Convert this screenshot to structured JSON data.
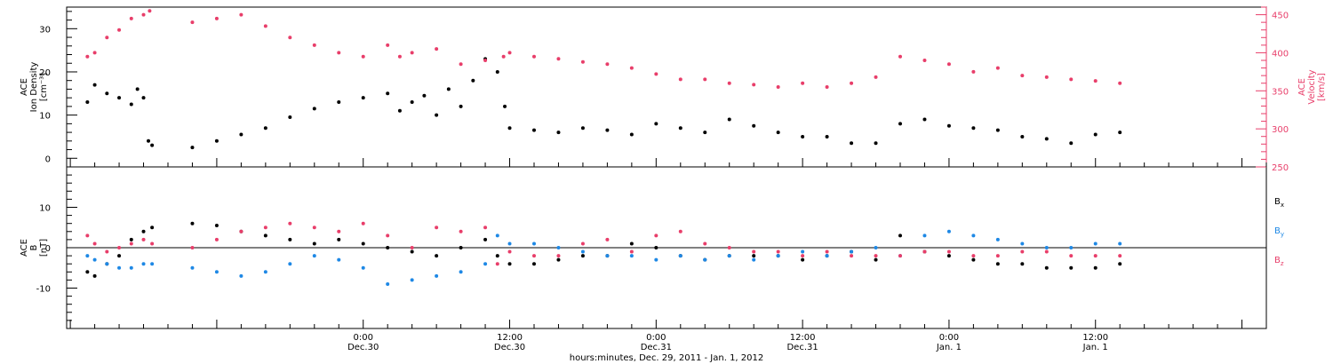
{
  "chart_data": [
    {
      "type": "scatter",
      "panel": "top",
      "ylabel_left_lines": [
        "ACE",
        "Ion Density",
        "[cm⁻³]"
      ],
      "ylabel_right_lines": [
        "ACE",
        "Velocity",
        "[km/s]"
      ],
      "left_axis_color": "#000000",
      "right_axis_color": "#e83e6a",
      "ylim_left": [
        -2,
        35
      ],
      "ylim_right": [
        250,
        460
      ],
      "yticks_left": [
        "0",
        "10",
        "20",
        "30"
      ],
      "yticks_right": [
        "250",
        "300",
        "350",
        "400",
        "450"
      ],
      "series": [
        {
          "color": "#000000",
          "axis": "left",
          "points": [
            [
              -22.6,
              13
            ],
            [
              -22,
              17
            ],
            [
              -21,
              15
            ],
            [
              -20,
              14
            ],
            [
              -19,
              12.5
            ],
            [
              -18.5,
              16
            ],
            [
              -18,
              14
            ],
            [
              -17.6,
              4
            ],
            [
              -17.3,
              3
            ],
            [
              -14,
              2.5
            ],
            [
              -12,
              4
            ],
            [
              -10,
              5.5
            ],
            [
              -8,
              7
            ],
            [
              -6,
              9.5
            ],
            [
              -4,
              11.5
            ],
            [
              -2,
              13
            ],
            [
              0,
              14
            ],
            [
              2,
              15
            ],
            [
              3,
              11
            ],
            [
              4,
              13
            ],
            [
              5,
              14.5
            ],
            [
              6,
              10
            ],
            [
              7,
              16
            ],
            [
              8,
              12
            ],
            [
              9,
              18
            ],
            [
              10,
              23
            ],
            [
              11,
              20
            ],
            [
              11.6,
              12
            ],
            [
              12,
              7
            ],
            [
              14,
              6.5
            ],
            [
              16,
              6
            ],
            [
              18,
              7
            ],
            [
              20,
              6.5
            ],
            [
              22,
              5.5
            ],
            [
              24,
              8
            ],
            [
              26,
              7
            ],
            [
              28,
              6
            ],
            [
              30,
              9
            ],
            [
              32,
              7.5
            ],
            [
              34,
              6
            ],
            [
              36,
              5
            ],
            [
              38,
              5
            ],
            [
              40,
              3.5
            ],
            [
              42,
              3.5
            ],
            [
              44,
              8
            ],
            [
              46,
              9
            ],
            [
              48,
              7.5
            ],
            [
              50,
              7
            ],
            [
              52,
              6.5
            ],
            [
              54,
              5
            ],
            [
              56,
              4.5
            ],
            [
              58,
              3.5
            ],
            [
              60,
              5.5
            ],
            [
              62,
              6
            ]
          ]
        },
        {
          "color": "#e83e6a",
          "axis": "right",
          "points": [
            [
              -22.6,
              395
            ],
            [
              -22,
              400
            ],
            [
              -21,
              420
            ],
            [
              -20,
              430
            ],
            [
              -19,
              445
            ],
            [
              -18,
              450
            ],
            [
              -17.5,
              455
            ],
            [
              -14,
              440
            ],
            [
              -12,
              445
            ],
            [
              -10,
              450
            ],
            [
              -8,
              435
            ],
            [
              -6,
              420
            ],
            [
              -4,
              410
            ],
            [
              -2,
              400
            ],
            [
              0,
              395
            ],
            [
              2,
              410
            ],
            [
              3,
              395
            ],
            [
              4,
              400
            ],
            [
              6,
              405
            ],
            [
              8,
              385
            ],
            [
              10,
              390
            ],
            [
              11.5,
              395
            ],
            [
              12,
              400
            ],
            [
              14,
              395
            ],
            [
              16,
              392
            ],
            [
              18,
              388
            ],
            [
              20,
              385
            ],
            [
              22,
              380
            ],
            [
              24,
              372
            ],
            [
              26,
              365
            ],
            [
              28,
              365
            ],
            [
              30,
              360
            ],
            [
              32,
              358
            ],
            [
              34,
              355
            ],
            [
              36,
              360
            ],
            [
              38,
              355
            ],
            [
              40,
              360
            ],
            [
              42,
              368
            ],
            [
              44,
              395
            ],
            [
              46,
              390
            ],
            [
              48,
              385
            ],
            [
              50,
              375
            ],
            [
              52,
              380
            ],
            [
              54,
              370
            ],
            [
              56,
              368
            ],
            [
              58,
              365
            ],
            [
              60,
              363
            ],
            [
              62,
              360
            ]
          ]
        }
      ]
    },
    {
      "type": "scatter",
      "panel": "bottom",
      "ylabel_lines": [
        "ACE",
        "B",
        "[nT]"
      ],
      "ylim": [
        -20,
        20
      ],
      "yticks": [
        "-10",
        "0",
        "10"
      ],
      "zero_line": true,
      "series": [
        {
          "name": "Bx",
          "color": "#000000",
          "points": [
            [
              -22.6,
              -6
            ],
            [
              -22,
              -7
            ],
            [
              -21,
              -4
            ],
            [
              -20,
              -2
            ],
            [
              -19,
              2
            ],
            [
              -18,
              4
            ],
            [
              -17.3,
              5
            ],
            [
              -14,
              6
            ],
            [
              -12,
              5.5
            ],
            [
              -10,
              4
            ],
            [
              -8,
              3
            ],
            [
              -6,
              2
            ],
            [
              -4,
              1
            ],
            [
              -2,
              2
            ],
            [
              0,
              1
            ],
            [
              2,
              0
            ],
            [
              4,
              -1
            ],
            [
              6,
              -2
            ],
            [
              8,
              0
            ],
            [
              10,
              2
            ],
            [
              11,
              -2
            ],
            [
              12,
              -4
            ],
            [
              14,
              -4
            ],
            [
              16,
              -3
            ],
            [
              18,
              -2
            ],
            [
              20,
              -2
            ],
            [
              22,
              1
            ],
            [
              24,
              0
            ],
            [
              26,
              -2
            ],
            [
              28,
              -3
            ],
            [
              30,
              -2
            ],
            [
              32,
              -2
            ],
            [
              34,
              -2
            ],
            [
              36,
              -3
            ],
            [
              38,
              -2
            ],
            [
              40,
              -1
            ],
            [
              42,
              -3
            ],
            [
              44,
              3
            ],
            [
              46,
              -1
            ],
            [
              48,
              -2
            ],
            [
              50,
              -3
            ],
            [
              52,
              -4
            ],
            [
              54,
              -4
            ],
            [
              56,
              -5
            ],
            [
              58,
              -5
            ],
            [
              60,
              -5
            ],
            [
              62,
              -4
            ]
          ]
        },
        {
          "name": "By",
          "color": "#1e88e5",
          "points": [
            [
              -22.6,
              -2
            ],
            [
              -22,
              -3
            ],
            [
              -21,
              -4
            ],
            [
              -20,
              -5
            ],
            [
              -19,
              -5
            ],
            [
              -18,
              -4
            ],
            [
              -17.3,
              -4
            ],
            [
              -14,
              -5
            ],
            [
              -12,
              -6
            ],
            [
              -10,
              -7
            ],
            [
              -8,
              -6
            ],
            [
              -6,
              -4
            ],
            [
              -4,
              -2
            ],
            [
              -2,
              -3
            ],
            [
              0,
              -5
            ],
            [
              2,
              -9
            ],
            [
              4,
              -8
            ],
            [
              6,
              -7
            ],
            [
              8,
              -6
            ],
            [
              10,
              -4
            ],
            [
              11,
              3
            ],
            [
              12,
              1
            ],
            [
              14,
              1
            ],
            [
              16,
              0
            ],
            [
              18,
              -1
            ],
            [
              20,
              -2
            ],
            [
              22,
              -2
            ],
            [
              24,
              -3
            ],
            [
              26,
              -2
            ],
            [
              28,
              -3
            ],
            [
              30,
              -2
            ],
            [
              32,
              -3
            ],
            [
              34,
              -2
            ],
            [
              36,
              -1
            ],
            [
              38,
              -2
            ],
            [
              40,
              -1
            ],
            [
              42,
              0
            ],
            [
              44,
              -2
            ],
            [
              46,
              3
            ],
            [
              48,
              4
            ],
            [
              50,
              3
            ],
            [
              52,
              2
            ],
            [
              54,
              1
            ],
            [
              56,
              0
            ],
            [
              58,
              0
            ],
            [
              60,
              1
            ],
            [
              62,
              1
            ]
          ]
        },
        {
          "name": "Bz",
          "color": "#e83e6a",
          "points": [
            [
              -22.6,
              3
            ],
            [
              -22,
              1
            ],
            [
              -21,
              -1
            ],
            [
              -20,
              0
            ],
            [
              -19,
              1
            ],
            [
              -18,
              2
            ],
            [
              -17.3,
              1
            ],
            [
              -14,
              0
            ],
            [
              -12,
              2
            ],
            [
              -10,
              4
            ],
            [
              -8,
              5
            ],
            [
              -6,
              6
            ],
            [
              -4,
              5
            ],
            [
              -2,
              4
            ],
            [
              0,
              6
            ],
            [
              2,
              3
            ],
            [
              4,
              0
            ],
            [
              6,
              5
            ],
            [
              8,
              4
            ],
            [
              10,
              5
            ],
            [
              11,
              -4
            ],
            [
              12,
              -1
            ],
            [
              14,
              -2
            ],
            [
              16,
              -2
            ],
            [
              18,
              1
            ],
            [
              20,
              2
            ],
            [
              22,
              -1
            ],
            [
              24,
              3
            ],
            [
              26,
              4
            ],
            [
              28,
              1
            ],
            [
              30,
              0
            ],
            [
              32,
              -1
            ],
            [
              34,
              -1
            ],
            [
              36,
              -2
            ],
            [
              38,
              -1
            ],
            [
              40,
              -2
            ],
            [
              42,
              -2
            ],
            [
              44,
              -2
            ],
            [
              46,
              -1
            ],
            [
              48,
              -1
            ],
            [
              50,
              -2
            ],
            [
              52,
              -2
            ],
            [
              54,
              -1
            ],
            [
              56,
              -1
            ],
            [
              58,
              -2
            ],
            [
              60,
              -2
            ],
            [
              62,
              -2
            ]
          ]
        }
      ],
      "legend_labels": [
        {
          "base": "B",
          "sub": "x",
          "color": "#000000"
        },
        {
          "base": "B",
          "sub": "y",
          "color": "#1e88e5"
        },
        {
          "base": "B",
          "sub": "z",
          "color": "#e83e6a"
        }
      ]
    }
  ],
  "x_axis": {
    "xlim": [
      -24.3,
      74
    ],
    "ticks": [
      {
        "x": 0,
        "time": "0:00",
        "date": "Dec.30"
      },
      {
        "x": 12,
        "time": "12:00",
        "date": "Dec.30"
      },
      {
        "x": 24,
        "time": "0:00",
        "date": "Dec.31"
      },
      {
        "x": 36,
        "time": "12:00",
        "date": "Dec.31"
      },
      {
        "x": 48,
        "time": "0:00",
        "date": "Jan. 1"
      },
      {
        "x": 60,
        "time": "12:00",
        "date": "Jan. 1"
      }
    ],
    "xlabel": "hours:minutes, Dec. 29, 2011 - Jan. 1, 2012"
  }
}
